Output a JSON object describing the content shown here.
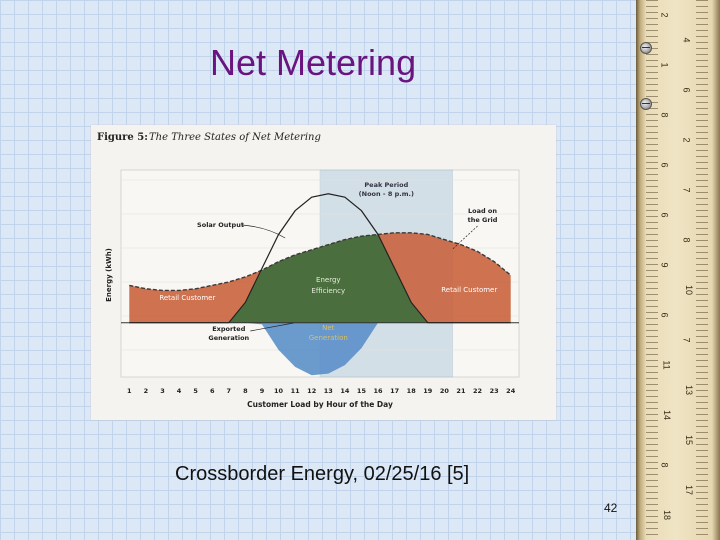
{
  "slide": {
    "title": "Net Metering",
    "caption": "Crossborder Energy, 02/25/16 [5]",
    "page_number": "42"
  },
  "ruler": {
    "numbers": [
      "2",
      "4",
      "1",
      "6",
      "8",
      "2",
      "6",
      "7",
      "6",
      "8",
      "9",
      "10",
      "6",
      "7",
      "11",
      "13",
      "14",
      "15",
      "8",
      "17",
      "18"
    ]
  },
  "colors": {
    "retail_customer": "#c9633e",
    "energy_efficiency": "#4a6e3e",
    "exported_generation": "#5b8fc9",
    "peak_period": "#a8c4d8",
    "load_curve": "#3a3a3a"
  },
  "chart_data": {
    "type": "area",
    "figure_label": "Figure 5:",
    "figure_title": "The Three States of Net Metering",
    "xlabel": "Customer Load by Hour of the Day",
    "ylabel": "Energy (kWh)",
    "x": [
      1,
      2,
      3,
      4,
      5,
      6,
      7,
      8,
      9,
      10,
      11,
      12,
      13,
      14,
      15,
      16,
      17,
      18,
      19,
      20,
      21,
      22,
      23,
      24
    ],
    "tick_labels": [
      "1",
      "2",
      "3",
      "4",
      "5",
      "6",
      "7",
      "8",
      "9",
      "10",
      "11",
      "12",
      "13",
      "14",
      "15",
      "16",
      "17",
      "18",
      "19",
      "20",
      "21",
      "22",
      "23",
      "24"
    ],
    "xlim": [
      0.5,
      24.5
    ],
    "ylim": [
      -1.6,
      4.5
    ],
    "series": [
      {
        "name": "Load on the Grid",
        "values": [
          1.1,
          1.0,
          0.95,
          0.95,
          1.0,
          1.1,
          1.2,
          1.35,
          1.55,
          1.8,
          2.0,
          2.15,
          2.3,
          2.45,
          2.55,
          2.6,
          2.65,
          2.65,
          2.6,
          2.45,
          2.3,
          2.1,
          1.8,
          1.4
        ]
      },
      {
        "name": "Solar Output",
        "values": [
          0,
          0,
          0,
          0,
          0,
          0,
          0,
          0.6,
          1.6,
          2.6,
          3.3,
          3.7,
          3.8,
          3.7,
          3.3,
          2.6,
          1.6,
          0.6,
          0,
          0,
          0,
          0,
          0,
          0
        ]
      }
    ],
    "peak_period": {
      "start": 12.5,
      "end": 20.5,
      "label_line1": "Peak Period",
      "label_line2": "(Noon - 8 p.m.)"
    },
    "annotations": {
      "solar_output": "Solar Output",
      "load_line1": "Load on",
      "load_line2": "the Grid",
      "retail_left": "Retail Customer",
      "retail_right": "Retail Customer",
      "efficiency_line1": "Energy",
      "efficiency_line2": "Efficiency",
      "exported_line1": "Exported",
      "exported_line2": "Generation",
      "net_line1": "Net",
      "net_line2": "Generation"
    },
    "grid": true
  }
}
